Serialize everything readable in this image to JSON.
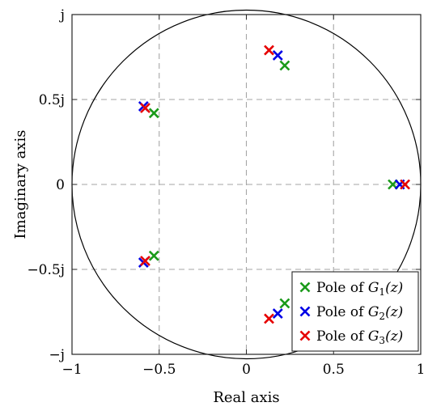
{
  "chart_data": {
    "type": "scatter",
    "title": "",
    "xlabel": "Real axis",
    "ylabel": "Imaginary axis",
    "xlim": [
      -1,
      1
    ],
    "ylim": [
      -1,
      1
    ],
    "grid": true,
    "legend_position": "bottom-right",
    "unit_circle": true,
    "marker": "x",
    "x_ticks": [
      {
        "value": -1,
        "label": "−1"
      },
      {
        "value": -0.5,
        "label": "−0.5"
      },
      {
        "value": 0,
        "label": "0"
      },
      {
        "value": 0.5,
        "label": "0.5"
      },
      {
        "value": 1,
        "label": "1"
      }
    ],
    "y_ticks": [
      {
        "value": 1,
        "label": "j"
      },
      {
        "value": 0.5,
        "label": "0.5j"
      },
      {
        "value": 0,
        "label": "0"
      },
      {
        "value": -0.5,
        "label": "−0.5j"
      },
      {
        "value": -1,
        "label": "−j"
      }
    ],
    "series": [
      {
        "legend_prefix": "Pole of ",
        "legend_var": "G",
        "legend_sub": "1",
        "legend_arg": "(z)",
        "color": "#1a9a1a",
        "points": [
          [
            0.22,
            0.7
          ],
          [
            -0.53,
            0.42
          ],
          [
            -0.53,
            -0.42
          ],
          [
            0.22,
            -0.7
          ],
          [
            0.84,
            0.0
          ]
        ]
      },
      {
        "legend_prefix": "Pole of ",
        "legend_var": "G",
        "legend_sub": "2",
        "legend_arg": "(z)",
        "color": "#0000e6",
        "points": [
          [
            0.18,
            0.76
          ],
          [
            -0.59,
            0.46
          ],
          [
            -0.59,
            -0.46
          ],
          [
            0.18,
            -0.76
          ],
          [
            0.88,
            0.0
          ]
        ]
      },
      {
        "legend_prefix": "Pole of ",
        "legend_var": "G",
        "legend_sub": "3",
        "legend_arg": "(z)",
        "color": "#e60000",
        "points": [
          [
            0.13,
            0.79
          ],
          [
            -0.58,
            0.45
          ],
          [
            -0.58,
            -0.45
          ],
          [
            0.13,
            -0.79
          ],
          [
            0.91,
            0.0
          ]
        ]
      }
    ]
  }
}
